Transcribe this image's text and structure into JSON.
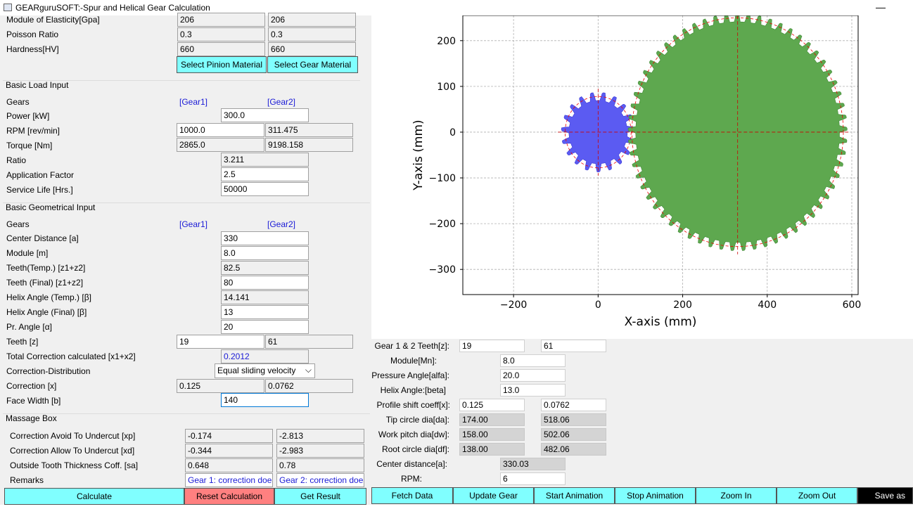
{
  "window": {
    "title": "GEARguruSOFT:-Spur and Helical Gear Calculation",
    "minimize": "—"
  },
  "material": {
    "rows": [
      {
        "label": "Module of Elasticity[Gpa]",
        "g1": "206",
        "g2": "206"
      },
      {
        "label": "Poisson Ratio",
        "g1": "0.3",
        "g2": "0.3"
      },
      {
        "label": "Hardness[HV]",
        "g1": "660",
        "g2": "660"
      }
    ],
    "pinion_btn": "Select Pinion Material",
    "gear_btn": "Select Gear Material"
  },
  "load": {
    "title": "Basic Load Input",
    "gears_label": "Gears",
    "gear1": "[Gear1]",
    "gear2": "[Gear2]",
    "power_label": "Power [kW]",
    "power": "300.0",
    "rpm_label": "RPM [rev/min]",
    "rpm1": "1000.0",
    "rpm2": "311.475",
    "torque_label": "Torque [Nm]",
    "torque1": "2865.0",
    "torque2": "9198.158",
    "ratio_label": "Ratio",
    "ratio": "3.211",
    "app_label": "Application Factor",
    "app": "2.5",
    "life_label": "Service Life [Hrs.]",
    "life": "50000"
  },
  "geom": {
    "title": "Basic Geometrical Input",
    "gears_label": "Gears",
    "gear1": "[Gear1]",
    "gear2": "[Gear2]",
    "center_label": "Center Distance [a]",
    "center": "330",
    "module_label": "Module [m]",
    "module": "8.0",
    "tt_label": "Teeth(Temp.) [z1+z2]",
    "tt": "82.5",
    "tf_label": "Teeth (Final) [z1+z2]",
    "tf": "80",
    "hat_label": "Helix Angle (Temp.) [β]",
    "hat": "14.141",
    "haf_label": "Helix Angle (Final) [β]",
    "haf": "13",
    "pa_label": "Pr. Angle [α]",
    "pa": "20",
    "teeth_label": "Teeth [z]",
    "z1": "19",
    "z2": "61",
    "tc_label": "Total Correction calculated [x1+x2]",
    "tc": "0.2012",
    "cd_label": "Correction-Distribution",
    "cd": "Equal sliding velocity",
    "corr_label": "Correction [x]",
    "x1": "0.125",
    "x2": "0.0762",
    "fw_label": "Face Width [b]",
    "fw": "140"
  },
  "massage": {
    "title": "Massage Box",
    "rows": [
      {
        "label": "Correction Avoid To Undercut [xp]",
        "g1": "-0.174",
        "g2": "-2.813"
      },
      {
        "label": "Correction Allow To Undercut [xd]",
        "g1": "-0.344",
        "g2": "-2.983"
      },
      {
        "label": "Outside Tooth Thickness Coff. [sa]",
        "g1": "0.648",
        "g2": "0.78"
      }
    ],
    "remarks_label": "Remarks",
    "remark1": "Gear 1: correction does",
    "remark2": "Gear 2: correction does"
  },
  "bottom_buttons": {
    "calculate": "Calculate",
    "reset": "Reset Calculation",
    "get_result": "Get Result",
    "fetch": "Fetch Data",
    "update": "Update Gear",
    "start": "Start Animation",
    "stop": "Stop Animation",
    "zoom_in": "Zoom In",
    "zoom_out": "Zoom Out",
    "save": "Save as"
  },
  "plot": {
    "xlabel": "X-axis (mm)",
    "ylabel": "Y-axis (mm)",
    "xticks": [
      "−200",
      "0",
      "200",
      "400",
      "600"
    ],
    "yticks": [
      "200",
      "100",
      "0",
      "−100",
      "−200",
      "−300"
    ]
  },
  "chart_data": {
    "type": "scatter",
    "title": "",
    "xlabel": "X-axis (mm)",
    "ylabel": "Y-axis (mm)",
    "xlim": [
      -320,
      615
    ],
    "ylim": [
      -355,
      255
    ],
    "xticks": [
      -200,
      0,
      200,
      400,
      600
    ],
    "yticks": [
      -300,
      -200,
      -100,
      0,
      100,
      200
    ],
    "grid": true,
    "series": [
      {
        "name": "Gear 1",
        "center": [
          0,
          0
        ],
        "teeth": 19,
        "tip_dia": 174.0,
        "root_dia": 138.0,
        "color": "#5b5bf2"
      },
      {
        "name": "Gear 2",
        "center": [
          330,
          0
        ],
        "teeth": 61,
        "tip_dia": 518.06,
        "root_dia": 482.06,
        "color": "#5ea84f"
      }
    ]
  },
  "results": {
    "teeth_label": "Gear 1 & 2 Teeth[z]:",
    "z1": "19",
    "z2": "61",
    "module_label": "Module[Mn]:",
    "module": "8.0",
    "pa_label": "Pressure Angle[alfa]:",
    "pa": "20.0",
    "ha_label": "Helix Angle:[beta]",
    "ha": "13.0",
    "ps_label": "Profile shift coeff[x]:",
    "x1": "0.125",
    "x2": "0.0762",
    "tip_label": "Tip circle dia[da]:",
    "tip1": "174.00",
    "tip2": "518.06",
    "work_label": "Work pitch dia[dw]:",
    "work1": "158.00",
    "work2": "502.06",
    "root_label": "Root circle dia[df]:",
    "root1": "138.00",
    "root2": "482.06",
    "cdist_label": "Center distance[a]:",
    "cdist": "330.03",
    "rpm_label": "RPM:",
    "rpm": "6"
  },
  "colors": {
    "accent_button": "#80ffff",
    "reset_button": "#ff8080",
    "save_button": "#000000"
  }
}
